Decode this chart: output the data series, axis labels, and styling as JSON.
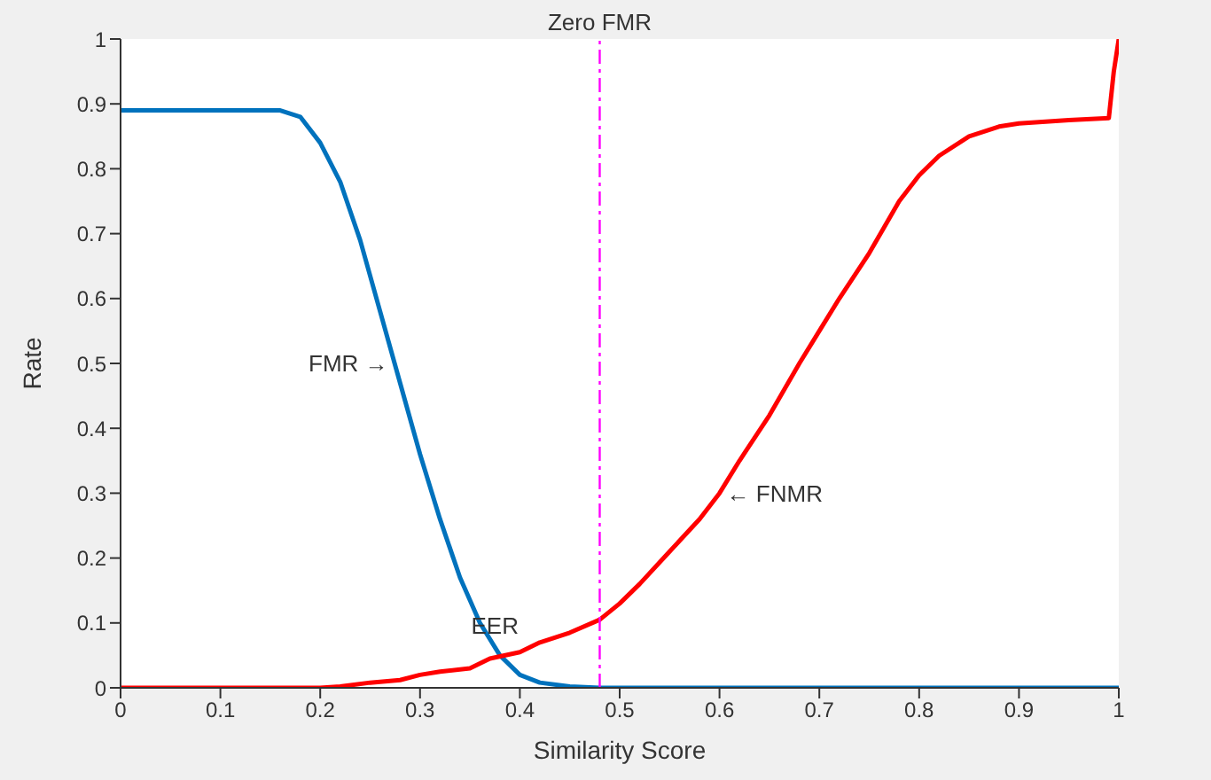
{
  "chart_data": {
    "type": "line",
    "xlabel": "Similarity Score",
    "ylabel": "Rate",
    "xlim": [
      0,
      1
    ],
    "xticks": [
      0,
      0.1,
      0.2,
      0.3,
      0.4,
      0.5,
      0.6,
      0.7,
      0.8,
      0.9,
      1
    ],
    "ylim": [
      0,
      1
    ],
    "yticks": [
      0,
      0.1,
      0.2,
      0.3,
      0.4,
      0.5,
      0.6,
      0.7,
      0.8,
      0.9,
      1
    ],
    "marker": "none",
    "line_style": "solid",
    "series": [
      {
        "color": "#0072bd",
        "x": [
          0,
          0.16,
          0.18,
          0.2,
          0.22,
          0.24,
          0.26,
          0.28,
          0.3,
          0.32,
          0.34,
          0.36,
          0.38,
          0.4,
          0.42,
          0.45,
          0.48,
          1
        ],
        "values": [
          0.89,
          0.89,
          0.88,
          0.84,
          0.78,
          0.69,
          0.58,
          0.47,
          0.36,
          0.26,
          0.17,
          0.1,
          0.05,
          0.02,
          0.008,
          0.002,
          0,
          0
        ]
      },
      {
        "color": "#ff0000",
        "x": [
          0,
          0.2,
          0.22,
          0.25,
          0.28,
          0.3,
          0.32,
          0.35,
          0.37,
          0.4,
          0.42,
          0.45,
          0.48,
          0.5,
          0.52,
          0.55,
          0.58,
          0.6,
          0.62,
          0.65,
          0.68,
          0.7,
          0.72,
          0.75,
          0.78,
          0.8,
          0.82,
          0.85,
          0.88,
          0.9,
          0.95,
          0.99,
          0.995,
          1
        ],
        "values": [
          0,
          0,
          0.002,
          0.008,
          0.012,
          0.02,
          0.025,
          0.03,
          0.045,
          0.055,
          0.07,
          0.085,
          0.105,
          0.13,
          0.16,
          0.21,
          0.26,
          0.3,
          0.35,
          0.42,
          0.5,
          0.55,
          0.6,
          0.67,
          0.75,
          0.79,
          0.82,
          0.85,
          0.865,
          0.87,
          0.875,
          0.878,
          0.95,
          1
        ]
      }
    ],
    "ref_lines": [
      {
        "axis": "x",
        "value": 0.48,
        "label": "Zero FMR",
        "color": "#ff00ff",
        "line_style": "dashdot"
      }
    ],
    "annotations": [
      {
        "text": "FMR →",
        "x": 0.275,
        "y": 0.5
      },
      {
        "text": "← FNMR",
        "x": 0.6,
        "y": 0.3
      },
      {
        "text": "EER",
        "x": 0.375,
        "y": 0.05
      }
    ]
  }
}
